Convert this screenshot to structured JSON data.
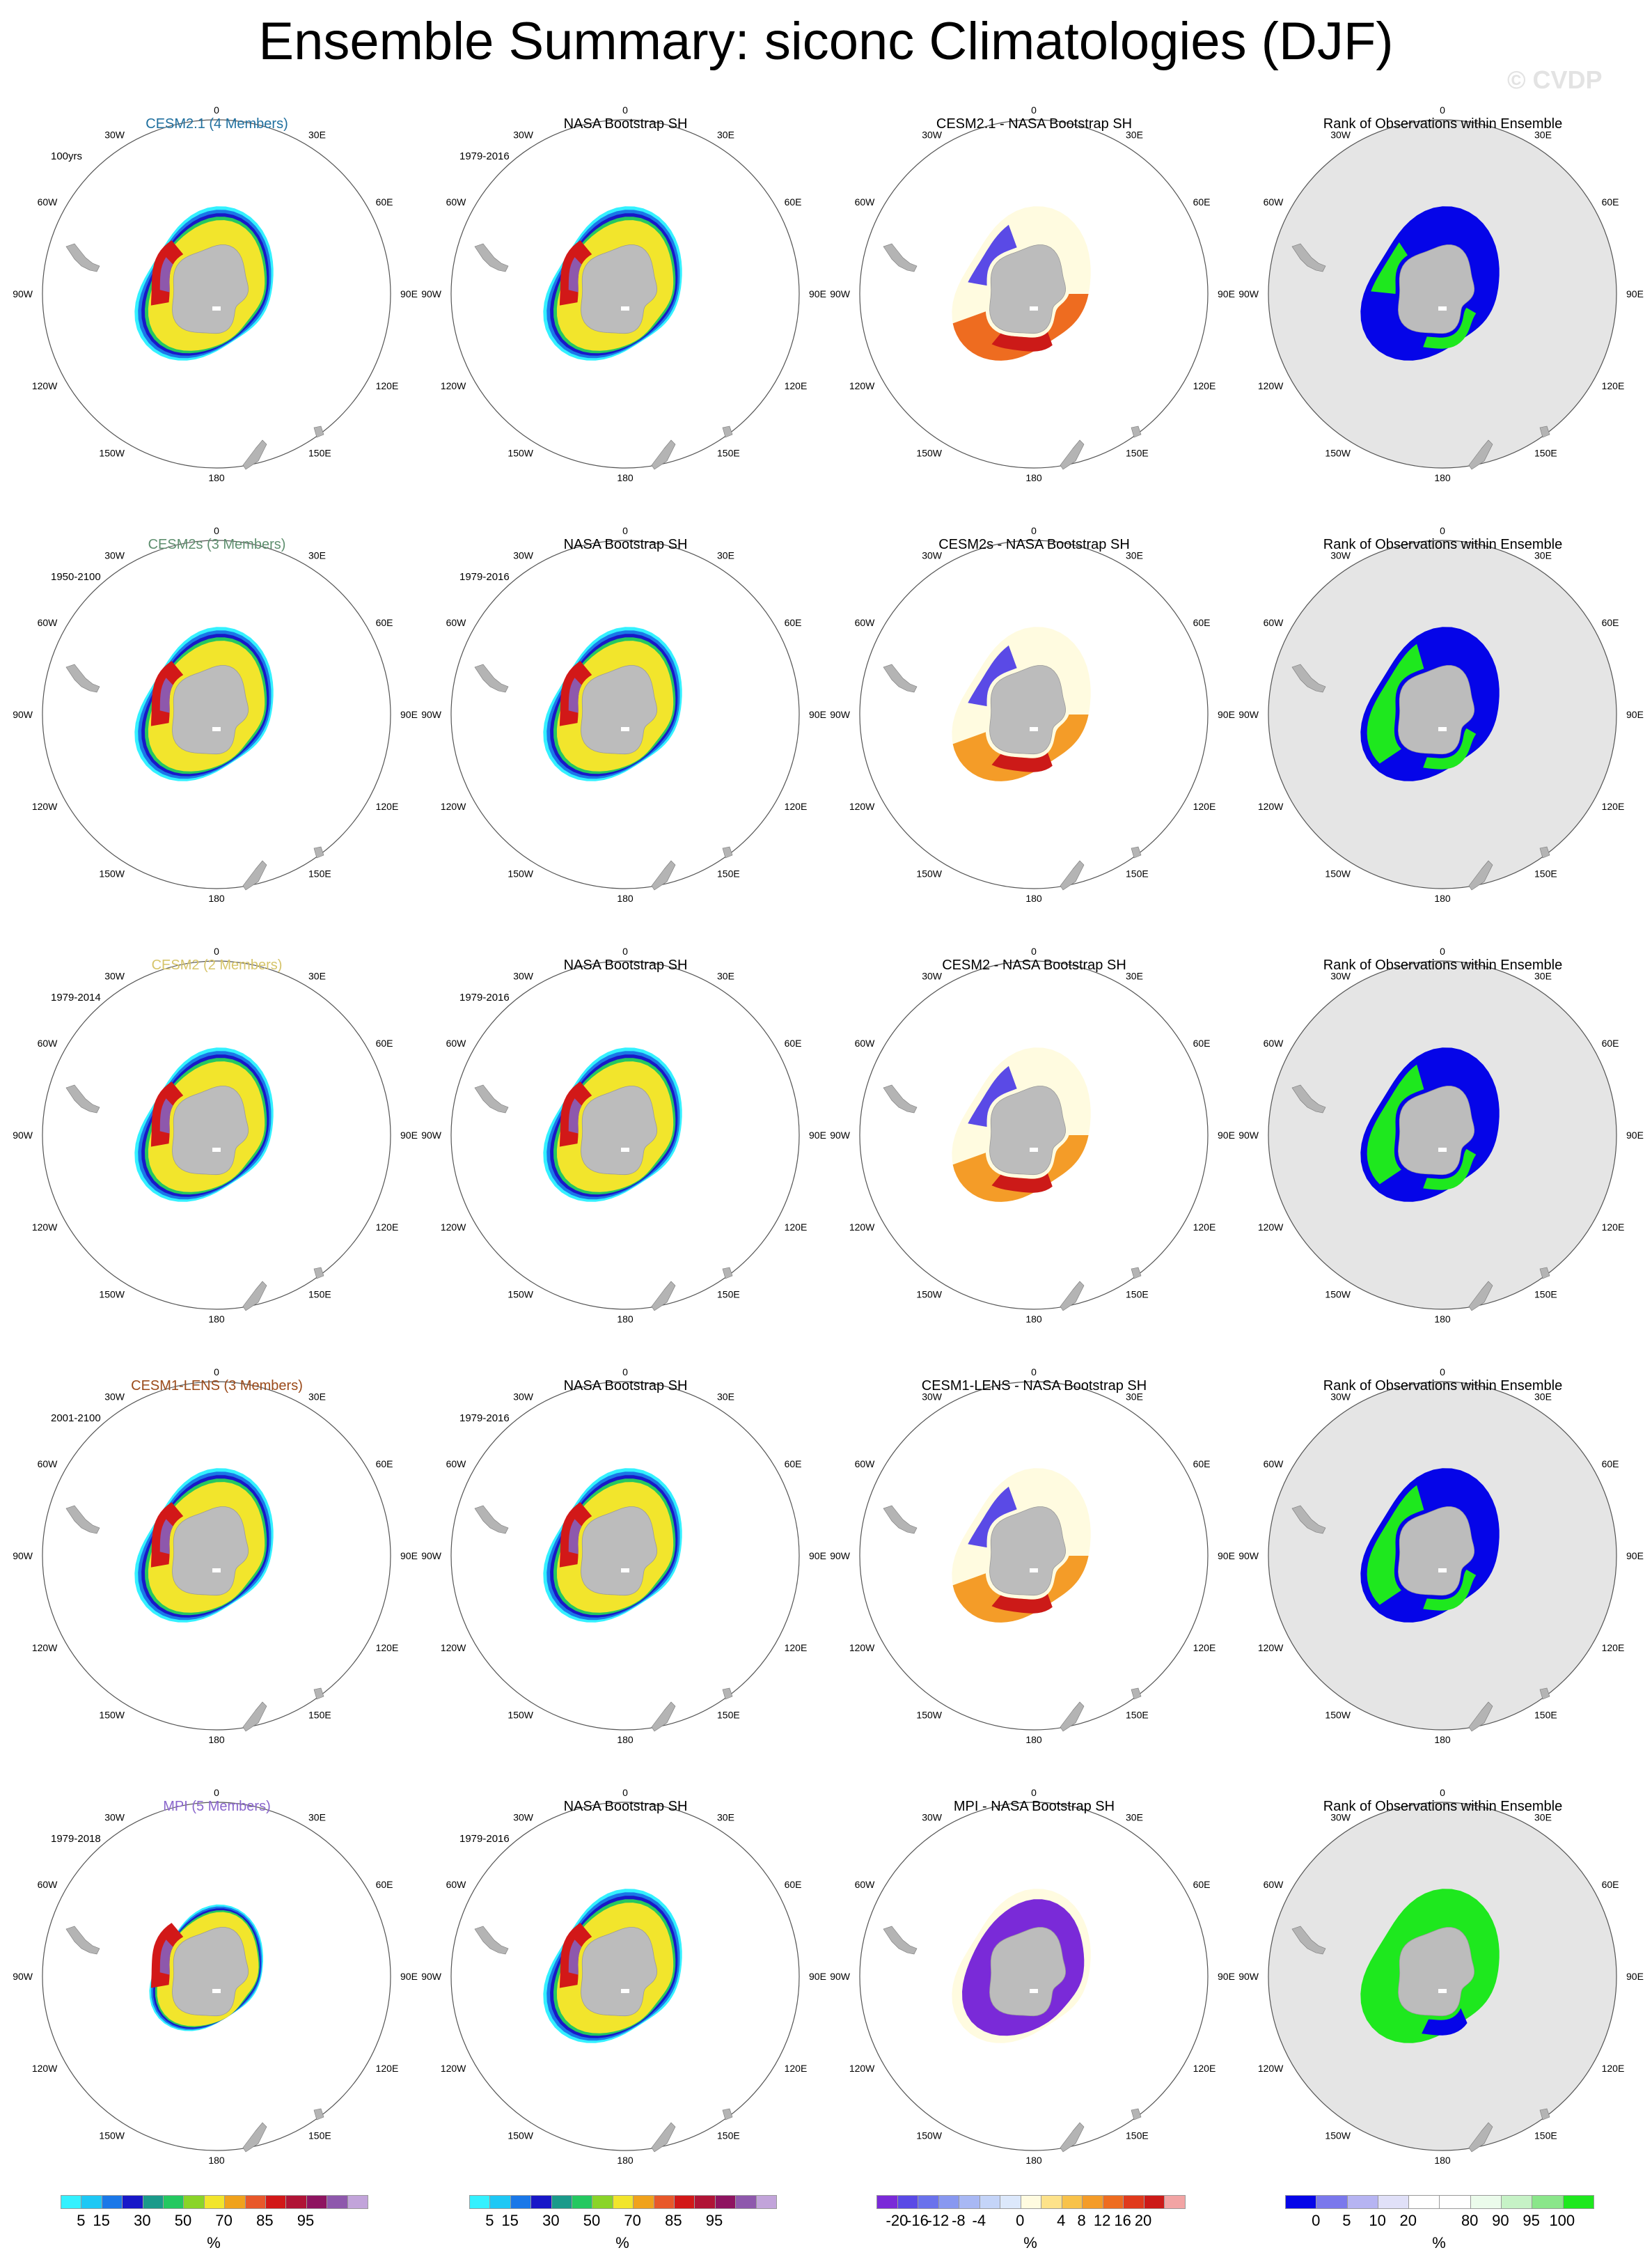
{
  "title": "Ensemble Summary: siconc Climatologies (DJF)",
  "watermark": "© CVDP",
  "rows": [
    {
      "model": "CESM2.1 (4 Members)",
      "model_color": "#1f6f9e",
      "model_range": "100yrs",
      "obs": "NASA Bootstrap SH",
      "obs_range": "1979-2016",
      "diff": "CESM2.1 - NASA Bootstrap SH",
      "rank": "Rank of Observations within Ensemble"
    },
    {
      "model": "CESM2s (3 Members)",
      "model_color": "#5f8f6f",
      "model_range": "1950-2100",
      "obs": "NASA Bootstrap SH",
      "obs_range": "1979-2016",
      "diff": "CESM2s - NASA Bootstrap SH",
      "rank": "Rank of Observations within Ensemble"
    },
    {
      "model": "CESM2 (2 Members)",
      "model_color": "#d6c46a",
      "model_range": "1979-2014",
      "obs": "NASA Bootstrap SH",
      "obs_range": "1979-2016",
      "diff": "CESM2 - NASA Bootstrap SH",
      "rank": "Rank of Observations within Ensemble"
    },
    {
      "model": "CESM1-LENS (3 Members)",
      "model_color": "#9a4a1a",
      "model_range": "2001-2100",
      "obs": "NASA Bootstrap SH",
      "obs_range": "1979-2016",
      "diff": "CESM1-LENS - NASA Bootstrap SH",
      "rank": "Rank of Observations within Ensemble"
    },
    {
      "model": "MPI (5 Members)",
      "model_color": "#8a66cc",
      "model_range": "1979-2018",
      "obs": "NASA Bootstrap SH",
      "obs_range": "1979-2016",
      "diff": "MPI - NASA Bootstrap SH",
      "rank": "Rank of Observations within Ensemble"
    }
  ],
  "map_labels": {
    "lon_0": "0",
    "lon_30e": "30E",
    "lon_60e": "60E",
    "lon_90e": "90E",
    "lon_120e": "120E",
    "lon_150e": "150E",
    "lon_180": "180",
    "lon_150w": "150W",
    "lon_120w": "120W",
    "lon_90w": "90W",
    "lon_60w": "60W",
    "lon_30w": "30W"
  },
  "colorbars": {
    "concentration": {
      "colors": [
        "#34f1ff",
        "#1ec8f5",
        "#1a78e8",
        "#1818c8",
        "#1a9a8a",
        "#24c860",
        "#8ad428",
        "#f2e52c",
        "#f0a21c",
        "#e8582a",
        "#d21818",
        "#b01436",
        "#8e1460",
        "#8e58ac",
        "#c2a4da"
      ],
      "ticks": [
        "5",
        "15",
        "30",
        "50",
        "70",
        "85",
        "95"
      ],
      "tick_pos": [
        1,
        2,
        4,
        6,
        8,
        10,
        12
      ],
      "unit": "%"
    },
    "difference": {
      "colors": [
        "#7a2ad8",
        "#5a4ae6",
        "#6a72ec",
        "#8898f0",
        "#a8b8f4",
        "#c4d4f8",
        "#dce8fb",
        "#fffbe0",
        "#fde28a",
        "#f8c24a",
        "#f49c28",
        "#ee6c20",
        "#e03a1c",
        "#cc1a18",
        "#f2a4a4"
      ],
      "ticks": [
        "-20",
        "-16",
        "-12",
        "-8",
        "-4",
        "0",
        "4",
        "8",
        "12",
        "16",
        "20"
      ],
      "tick_pos": [
        1,
        2,
        3,
        4,
        5,
        7,
        9,
        10,
        11,
        12,
        13
      ],
      "unit": "%"
    },
    "rank": {
      "colors": [
        "#0505e8",
        "#7a78ec",
        "#b6b4f2",
        "#e0e0f8",
        "#ffffff",
        "#ffffff",
        "#ebfbeb",
        "#c6f2c6",
        "#8ae68a",
        "#1ee81e"
      ],
      "ticks": [
        "0",
        "5",
        "10",
        "20",
        "80",
        "90",
        "95",
        "100"
      ],
      "tick_pos": [
        1,
        2,
        3,
        4,
        6,
        7,
        8,
        9
      ],
      "unit": "%"
    }
  },
  "chart_data": [
    {
      "type": "heatmap",
      "projection": "south polar stereographic",
      "variable": "siconc",
      "season": "DJF",
      "panels": "model climatology, observed climatology, difference, rank",
      "units": "%",
      "concentration_levels": [
        5,
        10,
        15,
        20,
        30,
        40,
        50,
        60,
        70,
        80,
        85,
        90,
        95,
        100
      ],
      "difference_levels": [
        -20,
        -16,
        -12,
        -8,
        -4,
        -2,
        0,
        2,
        4,
        8,
        12,
        16,
        20
      ],
      "rank_levels": [
        0,
        5,
        10,
        20,
        80,
        90,
        95,
        100
      ]
    }
  ]
}
